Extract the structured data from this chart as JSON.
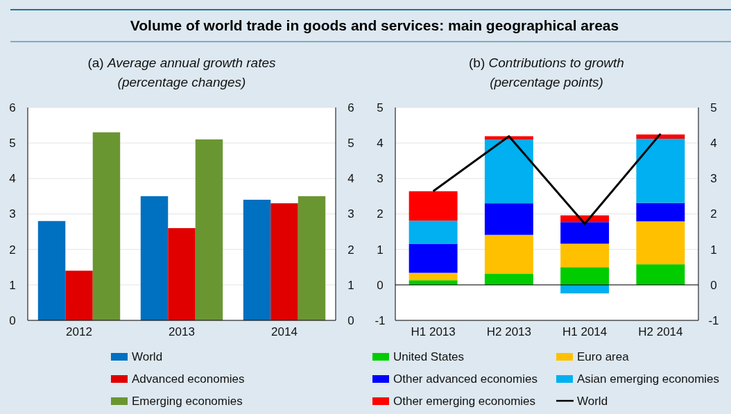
{
  "chart_data": [
    {
      "type": "bar",
      "title": "Volume of world trade in goods and services: main geographical areas",
      "subtitle": "(a) Average annual growth rates\n(percentage changes)",
      "categories": [
        "2012",
        "2013",
        "2014"
      ],
      "series": [
        {
          "name": "World",
          "color": "#0070c0",
          "values": [
            2.8,
            3.5,
            3.4
          ]
        },
        {
          "name": "Advanced economies",
          "color": "#e00000",
          "values": [
            1.4,
            2.6,
            3.3
          ]
        },
        {
          "name": "Emerging economies",
          "color": "#6a9632",
          "values": [
            5.3,
            5.1,
            3.5
          ]
        }
      ],
      "ylim": [
        0,
        6
      ],
      "yticks": [
        0,
        1,
        2,
        3,
        4,
        5,
        6
      ],
      "y2lim": [
        0,
        6
      ],
      "y2ticks": [
        0,
        1,
        2,
        3,
        4,
        5,
        6
      ],
      "grid": "y",
      "legend": "bottom"
    },
    {
      "type": "bar",
      "stacked": true,
      "subtitle": "(b) Contributions to growth\n(percentage points)",
      "categories": [
        "H1 2013",
        "H2 2013",
        "H1 2014",
        "H2 2014"
      ],
      "series": [
        {
          "name": "United States",
          "color": "#00cc00",
          "values": [
            0.13,
            0.32,
            0.5,
            0.58
          ]
        },
        {
          "name": "Euro area",
          "color": "#ffc000",
          "values": [
            0.21,
            1.09,
            0.66,
            1.21
          ]
        },
        {
          "name": "Other advanced economies",
          "color": "#0000ff",
          "values": [
            0.82,
            0.89,
            0.61,
            0.52
          ]
        },
        {
          "name": "Asian emerging economies",
          "color": "#00b0f0",
          "values": [
            0.65,
            1.79,
            -0.24,
            1.81
          ]
        },
        {
          "name": "Other emerging economies",
          "color": "#ff0000",
          "values": [
            0.83,
            0.1,
            0.19,
            0.12
          ]
        },
        {
          "name": "World",
          "type": "line",
          "color": "#000000",
          "values": [
            2.64,
            4.19,
            1.72,
            4.26
          ],
          "marker": "none",
          "line_style": "solid"
        }
      ],
      "ylim": [
        -1,
        5
      ],
      "yticks": [
        -1,
        0,
        1,
        2,
        3,
        4,
        5
      ],
      "y2lim": [
        -1,
        5
      ],
      "y2ticks": [
        -1,
        0,
        1,
        2,
        3,
        4,
        5
      ],
      "grid": "y",
      "legend": "bottom"
    }
  ]
}
